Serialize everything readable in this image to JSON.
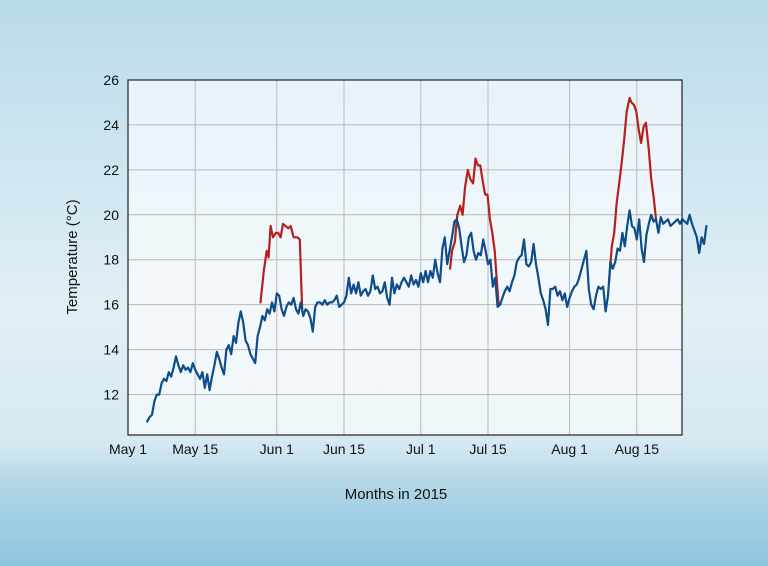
{
  "chart_data": {
    "type": "line",
    "title": "",
    "xlabel": "Months in 2015",
    "ylabel": "Temperature (°C)",
    "x_ticks": [
      {
        "day": 0,
        "label": "May 1"
      },
      {
        "day": 14,
        "label": "May 15"
      },
      {
        "day": 31,
        "label": "Jun 1"
      },
      {
        "day": 45,
        "label": "Jun 15"
      },
      {
        "day": 61,
        "label": "Jul 1"
      },
      {
        "day": 75,
        "label": "Jul 15"
      },
      {
        "day": 92,
        "label": "Aug 1"
      },
      {
        "day": 106,
        "label": "Aug 15"
      }
    ],
    "y_ticks": [
      12,
      14,
      16,
      18,
      20,
      22,
      24,
      26
    ],
    "xlim": [
      0,
      120
    ],
    "ylim": [
      10.2,
      26
    ],
    "grid": true,
    "series": [
      {
        "color": "#b5201f",
        "values": [
          [
            27.6,
            16.1
          ],
          [
            28.3,
            17.5
          ],
          [
            28.9,
            18.4
          ],
          [
            29.3,
            18.1
          ],
          [
            29.7,
            19.5
          ],
          [
            30.2,
            19.0
          ],
          [
            30.8,
            19.2
          ],
          [
            31.3,
            19.2
          ],
          [
            31.8,
            19.0
          ],
          [
            32.3,
            19.6
          ],
          [
            32.8,
            19.5
          ],
          [
            33.4,
            19.4
          ],
          [
            33.9,
            19.5
          ],
          [
            34.5,
            19.0
          ],
          [
            35.3,
            19.0
          ],
          [
            35.8,
            18.9
          ],
          [
            36.1,
            16.9
          ],
          [
            36.3,
            15.8
          ],
          [
            67.1,
            17.6
          ],
          [
            67.5,
            18.4
          ],
          [
            68.1,
            18.8
          ],
          [
            68.6,
            20.0
          ],
          [
            69.2,
            20.4
          ],
          [
            69.7,
            20.0
          ],
          [
            70.2,
            21.2
          ],
          [
            70.8,
            22.0
          ],
          [
            71.3,
            21.6
          ],
          [
            71.9,
            21.4
          ],
          [
            72.4,
            22.5
          ],
          [
            72.9,
            22.2
          ],
          [
            73.4,
            22.2
          ],
          [
            73.9,
            21.5
          ],
          [
            74.4,
            20.9
          ],
          [
            74.9,
            20.9
          ],
          [
            75.4,
            19.8
          ],
          [
            75.9,
            19.2
          ],
          [
            76.4,
            18.4
          ],
          [
            76.8,
            17.2
          ],
          [
            77.2,
            16.0
          ],
          [
            100.2,
            17.0
          ],
          [
            100.8,
            18.6
          ],
          [
            101.3,
            19.2
          ],
          [
            101.8,
            20.5
          ],
          [
            102.4,
            21.5
          ],
          [
            102.9,
            22.4
          ],
          [
            103.4,
            23.4
          ],
          [
            103.9,
            24.6
          ],
          [
            104.5,
            25.2
          ],
          [
            104.9,
            25.0
          ],
          [
            105.4,
            24.9
          ],
          [
            105.9,
            24.6
          ],
          [
            106.4,
            23.8
          ],
          [
            106.9,
            23.2
          ],
          [
            107.4,
            23.9
          ],
          [
            107.9,
            24.1
          ],
          [
            108.5,
            22.9
          ],
          [
            109.0,
            21.6
          ],
          [
            109.5,
            20.8
          ],
          [
            110.0,
            19.8
          ]
        ]
      },
      {
        "color": "#0e4c8a",
        "values": [
          [
            4.0,
            10.8
          ],
          [
            4.5,
            11.0
          ],
          [
            5.0,
            11.1
          ],
          [
            5.5,
            11.7
          ],
          [
            6.0,
            12.0
          ],
          [
            6.5,
            12.0
          ],
          [
            7.0,
            12.5
          ],
          [
            7.5,
            12.7
          ],
          [
            8.0,
            12.6
          ],
          [
            8.5,
            13.0
          ],
          [
            9.0,
            12.8
          ],
          [
            9.5,
            13.2
          ],
          [
            10.0,
            13.7
          ],
          [
            10.5,
            13.3
          ],
          [
            11.0,
            13.0
          ],
          [
            11.5,
            13.3
          ],
          [
            12.0,
            13.1
          ],
          [
            12.5,
            13.2
          ],
          [
            13.0,
            13.0
          ],
          [
            13.5,
            13.4
          ],
          [
            14.0,
            13.1
          ],
          [
            14.5,
            12.9
          ],
          [
            15.0,
            12.7
          ],
          [
            15.5,
            13.0
          ],
          [
            16.0,
            12.3
          ],
          [
            16.5,
            12.9
          ],
          [
            17.0,
            12.2
          ],
          [
            17.5,
            12.8
          ],
          [
            18.0,
            13.3
          ],
          [
            18.5,
            13.9
          ],
          [
            19.0,
            13.6
          ],
          [
            19.5,
            13.2
          ],
          [
            20.0,
            12.9
          ],
          [
            20.5,
            14.0
          ],
          [
            21.0,
            14.2
          ],
          [
            21.5,
            13.8
          ],
          [
            22.0,
            14.6
          ],
          [
            22.5,
            14.3
          ],
          [
            23.0,
            15.2
          ],
          [
            23.5,
            15.7
          ],
          [
            24.0,
            15.2
          ],
          [
            24.5,
            14.4
          ],
          [
            25.0,
            14.2
          ],
          [
            25.5,
            13.8
          ],
          [
            26.0,
            13.6
          ],
          [
            26.5,
            13.4
          ],
          [
            27.0,
            14.6
          ],
          [
            27.5,
            15.0
          ],
          [
            28.0,
            15.5
          ],
          [
            28.5,
            15.3
          ],
          [
            29.0,
            15.8
          ],
          [
            29.5,
            15.6
          ],
          [
            30.0,
            16.1
          ],
          [
            30.5,
            15.7
          ],
          [
            31.0,
            16.5
          ],
          [
            31.5,
            16.4
          ],
          [
            32.0,
            15.8
          ],
          [
            32.5,
            15.5
          ],
          [
            33.0,
            15.9
          ],
          [
            33.5,
            16.1
          ],
          [
            34.0,
            16.0
          ],
          [
            34.5,
            16.3
          ],
          [
            35.0,
            15.8
          ],
          [
            35.5,
            15.6
          ],
          [
            36.0,
            16.1
          ],
          [
            36.5,
            15.5
          ],
          [
            37.0,
            15.8
          ],
          [
            37.5,
            15.7
          ],
          [
            38.0,
            15.4
          ],
          [
            38.5,
            14.8
          ],
          [
            39.0,
            15.9
          ],
          [
            39.5,
            16.1
          ],
          [
            40.0,
            16.1
          ],
          [
            40.5,
            16.0
          ],
          [
            41.0,
            16.2
          ],
          [
            41.5,
            16.0
          ],
          [
            42.0,
            16.1
          ],
          [
            42.5,
            16.1
          ],
          [
            43.0,
            16.2
          ],
          [
            43.5,
            16.4
          ],
          [
            44.0,
            15.9
          ],
          [
            44.5,
            16.0
          ],
          [
            45.0,
            16.1
          ],
          [
            45.5,
            16.4
          ],
          [
            46.0,
            17.2
          ],
          [
            46.5,
            16.5
          ],
          [
            47.0,
            16.9
          ],
          [
            47.5,
            16.5
          ],
          [
            48.0,
            17.0
          ],
          [
            48.5,
            16.4
          ],
          [
            49.0,
            16.6
          ],
          [
            49.5,
            16.7
          ],
          [
            50.0,
            16.4
          ],
          [
            50.5,
            16.6
          ],
          [
            51.0,
            17.3
          ],
          [
            51.5,
            16.7
          ],
          [
            52.0,
            16.8
          ],
          [
            52.5,
            16.5
          ],
          [
            53.0,
            16.6
          ],
          [
            53.5,
            17.0
          ],
          [
            54.0,
            16.3
          ],
          [
            54.5,
            16.0
          ],
          [
            55.0,
            17.2
          ],
          [
            55.5,
            16.5
          ],
          [
            56.0,
            16.9
          ],
          [
            56.5,
            16.7
          ],
          [
            57.0,
            17.0
          ],
          [
            57.5,
            17.2
          ],
          [
            58.0,
            17.0
          ],
          [
            58.5,
            16.8
          ],
          [
            59.0,
            17.3
          ],
          [
            59.5,
            16.9
          ],
          [
            60.0,
            17.1
          ],
          [
            60.5,
            16.8
          ],
          [
            61.0,
            17.4
          ],
          [
            61.5,
            17.0
          ],
          [
            62.0,
            17.5
          ],
          [
            62.5,
            17.0
          ],
          [
            63.0,
            17.5
          ],
          [
            63.5,
            17.2
          ],
          [
            64.0,
            18.0
          ],
          [
            64.5,
            17.4
          ],
          [
            65.0,
            17.0
          ],
          [
            65.5,
            18.5
          ],
          [
            66.0,
            19.0
          ],
          [
            66.5,
            17.8
          ],
          [
            67.0,
            18.4
          ],
          [
            67.5,
            19.0
          ],
          [
            68.0,
            19.7
          ],
          [
            68.5,
            19.8
          ],
          [
            69.0,
            19.4
          ],
          [
            69.5,
            18.6
          ],
          [
            70.0,
            17.9
          ],
          [
            70.5,
            18.2
          ],
          [
            71.0,
            19.0
          ],
          [
            71.5,
            19.2
          ],
          [
            72.0,
            18.4
          ],
          [
            72.5,
            18.0
          ],
          [
            73.0,
            18.3
          ],
          [
            73.5,
            18.2
          ],
          [
            74.0,
            18.9
          ],
          [
            74.5,
            18.4
          ],
          [
            75.0,
            17.8
          ],
          [
            75.5,
            18.0
          ],
          [
            76.0,
            16.8
          ],
          [
            76.5,
            17.2
          ],
          [
            77.0,
            15.9
          ],
          [
            77.5,
            16.0
          ],
          [
            78.0,
            16.3
          ],
          [
            78.5,
            16.6
          ],
          [
            79.0,
            16.8
          ],
          [
            79.5,
            16.6
          ],
          [
            80.0,
            17.0
          ],
          [
            80.5,
            17.3
          ],
          [
            81.0,
            17.9
          ],
          [
            81.5,
            18.1
          ],
          [
            82.0,
            18.2
          ],
          [
            82.5,
            18.9
          ],
          [
            83.0,
            17.8
          ],
          [
            83.5,
            17.7
          ],
          [
            84.0,
            17.9
          ],
          [
            84.5,
            18.7
          ],
          [
            85.0,
            17.8
          ],
          [
            85.5,
            17.2
          ],
          [
            86.0,
            16.5
          ],
          [
            86.5,
            16.2
          ],
          [
            87.0,
            15.8
          ],
          [
            87.5,
            15.1
          ],
          [
            88.0,
            16.7
          ],
          [
            88.5,
            16.7
          ],
          [
            89.0,
            16.8
          ],
          [
            89.5,
            16.4
          ],
          [
            90.0,
            16.6
          ],
          [
            90.5,
            16.2
          ],
          [
            91.0,
            16.5
          ],
          [
            91.5,
            15.9
          ],
          [
            92.0,
            16.3
          ],
          [
            92.5,
            16.6
          ],
          [
            93.0,
            16.8
          ],
          [
            93.5,
            16.9
          ],
          [
            94.0,
            17.2
          ],
          [
            94.5,
            17.6
          ],
          [
            95.0,
            18.0
          ],
          [
            95.5,
            18.4
          ],
          [
            96.0,
            16.7
          ],
          [
            96.5,
            16.0
          ],
          [
            97.0,
            15.8
          ],
          [
            97.5,
            16.4
          ],
          [
            98.0,
            16.8
          ],
          [
            98.5,
            16.7
          ],
          [
            99.0,
            16.8
          ],
          [
            99.5,
            15.7
          ],
          [
            100.0,
            16.4
          ],
          [
            100.5,
            17.9
          ],
          [
            101.0,
            17.6
          ],
          [
            101.5,
            17.9
          ],
          [
            102.0,
            18.5
          ],
          [
            102.5,
            18.4
          ],
          [
            103.0,
            19.2
          ],
          [
            103.5,
            18.6
          ],
          [
            104.0,
            19.5
          ],
          [
            104.5,
            20.2
          ],
          [
            105.0,
            19.5
          ],
          [
            105.5,
            19.4
          ],
          [
            106.0,
            18.9
          ],
          [
            106.5,
            19.8
          ],
          [
            107.0,
            18.5
          ],
          [
            107.5,
            17.9
          ],
          [
            108.0,
            19.1
          ],
          [
            108.5,
            19.6
          ],
          [
            109.0,
            20.0
          ],
          [
            109.5,
            19.7
          ],
          [
            110.0,
            19.8
          ],
          [
            110.5,
            19.2
          ],
          [
            111.0,
            19.9
          ],
          [
            111.5,
            19.6
          ],
          [
            112.0,
            19.7
          ],
          [
            112.5,
            19.8
          ],
          [
            113.0,
            19.5
          ],
          [
            113.5,
            19.6
          ],
          [
            114.0,
            19.7
          ],
          [
            114.5,
            19.8
          ],
          [
            115.0,
            19.6
          ],
          [
            115.5,
            19.8
          ],
          [
            116.0,
            19.7
          ],
          [
            116.5,
            19.6
          ],
          [
            117.0,
            20.0
          ],
          [
            117.5,
            19.6
          ],
          [
            118.0,
            19.3
          ],
          [
            118.5,
            19.0
          ],
          [
            119.0,
            18.3
          ],
          [
            119.5,
            19.0
          ],
          [
            120.0,
            18.7
          ],
          [
            120.5,
            19.5
          ]
        ]
      }
    ]
  }
}
